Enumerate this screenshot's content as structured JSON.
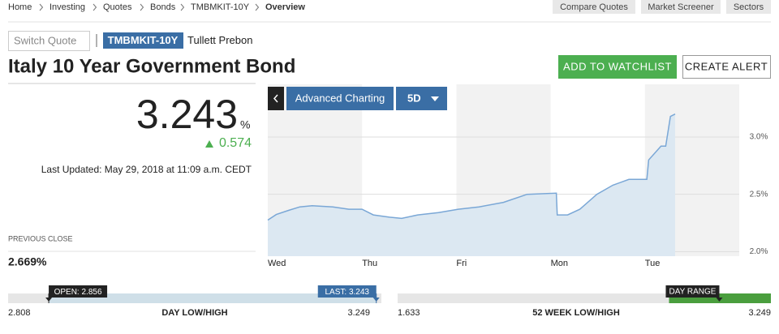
{
  "breadcrumb": [
    "Home",
    "Investing",
    "Quotes",
    "Bonds",
    "TMBMKIT-10Y",
    "Overview"
  ],
  "nav_buttons": [
    "Compare Quotes",
    "Market Screener",
    "Sectors"
  ],
  "search_placeholder": "Switch Quote",
  "ticker": "TMBMKIT-10Y",
  "source": "Tullett Prebon",
  "title": "Italy 10 Year Government Bond",
  "actions": [
    "ADD TO WATCHLIST",
    "CREATE ALERT"
  ],
  "quote": {
    "price": 3.243,
    "unit": "%",
    "change": 0.574,
    "last_updated": "Last Updated: May 29, 2018 at 11:09 a.m. CEDT",
    "previous_close_label": "PREVIOUS CLOSE",
    "previous_close": "2.669%"
  },
  "chart_controls": [
    "Advanced Charting",
    "5D"
  ],
  "chart_data": {
    "type": "line",
    "x": [
      0,
      0.09,
      0.22,
      0.34,
      0.47,
      0.69,
      0.86,
      1.0,
      1.12,
      1.29,
      1.42,
      1.59,
      1.81,
      2.02,
      2.24,
      2.5,
      2.75,
      3.06,
      3.07,
      3.18,
      3.31,
      3.49,
      3.66,
      3.83,
      4.02,
      4.04,
      4.17,
      4.22,
      4.27,
      4.32
    ],
    "series": [
      {
        "color": "#7aa7d6",
        "values": [
          2.275,
          2.324,
          2.36,
          2.39,
          2.4,
          2.39,
          2.37,
          2.37,
          2.32,
          2.3,
          2.29,
          2.32,
          2.34,
          2.37,
          2.39,
          2.43,
          2.5,
          2.51,
          2.32,
          2.32,
          2.37,
          2.5,
          2.58,
          2.63,
          2.63,
          2.8,
          2.92,
          2.92,
          3.18,
          3.2
        ]
      }
    ],
    "xlim": [
      0,
      5
    ],
    "xticks": [
      {
        "value": 0,
        "label": "Wed"
      },
      {
        "value": 1,
        "label": "Thu"
      },
      {
        "value": 2,
        "label": "Fri"
      },
      {
        "value": 3,
        "label": "Mon"
      },
      {
        "value": 4,
        "label": "Tue"
      }
    ],
    "ylim": [
      1.96,
      3.46
    ],
    "yticks": [
      {
        "value": 2.0,
        "label": "2.0%"
      },
      {
        "value": 2.5,
        "label": "2.5%"
      },
      {
        "value": 3.0,
        "label": "3.0%"
      }
    ],
    "grid": true
  },
  "ranges": {
    "day": {
      "label": "DAY LOW/HIGH",
      "low": 2.808,
      "high": 3.249,
      "open_label": "OPEN:",
      "open": 2.856,
      "last_label": "LAST:",
      "last": 3.243
    },
    "year": {
      "label": "52 WEEK LOW/HIGH",
      "low": 1.633,
      "high": 3.249,
      "marker_label": "DAY RANGE"
    }
  }
}
